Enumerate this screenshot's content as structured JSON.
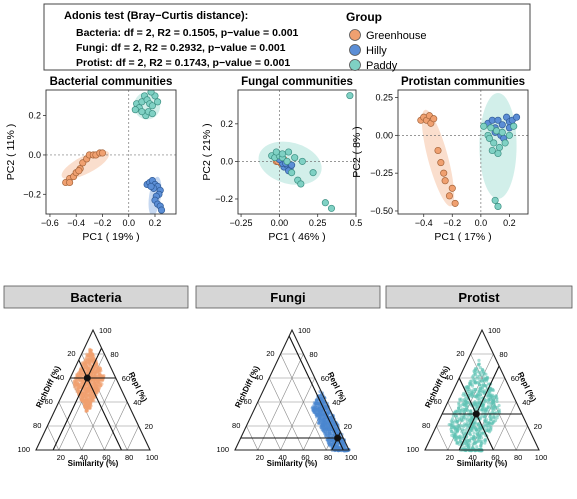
{
  "legend": {
    "adonis_title": "Adonis test (Bray−Curtis distance):",
    "adonis_lines": [
      "Bacteria: df = 2, R2 = 0.1505, p−value = 0.001",
      "Fungi: df = 2, R2 = 0.2932, p−value = 0.001",
      "Protist: df = 2, R2 = 0.1743, p−value = 0.001"
    ],
    "group_title": "Group",
    "groups": [
      {
        "name": "Greenhouse",
        "color": "#f0a070"
      },
      {
        "name": "Hilly",
        "color": "#5b8ed6"
      },
      {
        "name": "Paddy",
        "color": "#7fd1c4"
      }
    ]
  },
  "chart_data": [
    {
      "type": "scatter",
      "title": "Bacterial communities",
      "xlabel": "PC1 ( 19% )",
      "ylabel": "PC2 ( 11% )",
      "xlim": [
        -0.63,
        0.36
      ],
      "ylim": [
        -0.3,
        0.33
      ],
      "xticks": [
        -0.6,
        -0.4,
        -0.2,
        0.0,
        0.2
      ],
      "xtick_labels": [
        "−0.6",
        "−0.4",
        "−0.2",
        "0.0",
        "0.2"
      ],
      "yticks": [
        -0.2,
        0.0,
        0.2
      ],
      "ytick_labels": [
        "−0.2",
        "0.0",
        "0.2"
      ],
      "series": [
        {
          "name": "Greenhouse",
          "points": [
            [
              -0.48,
              -0.14
            ],
            [
              -0.45,
              -0.12
            ],
            [
              -0.42,
              -0.11
            ],
            [
              -0.4,
              -0.09
            ],
            [
              -0.37,
              -0.07
            ],
            [
              -0.35,
              -0.04
            ],
            [
              -0.32,
              -0.02
            ],
            [
              -0.3,
              0.0
            ],
            [
              -0.27,
              0.0
            ],
            [
              -0.25,
              0.0
            ],
            [
              -0.22,
              0.01
            ],
            [
              -0.2,
              0.01
            ],
            [
              -0.45,
              -0.14
            ],
            [
              -0.38,
              -0.08
            ]
          ],
          "ellipse": {
            "cx": -0.33,
            "cy": -0.05,
            "rx": 0.2,
            "ry": 0.045,
            "angle_deg": 27
          }
        },
        {
          "name": "Hilly",
          "points": [
            [
              0.14,
              -0.15
            ],
            [
              0.16,
              -0.14
            ],
            [
              0.18,
              -0.13
            ],
            [
              0.2,
              -0.15
            ],
            [
              0.22,
              -0.16
            ],
            [
              0.24,
              -0.18
            ],
            [
              0.23,
              -0.2
            ],
            [
              0.21,
              -0.21
            ],
            [
              0.2,
              -0.23
            ],
            [
              0.22,
              -0.25
            ],
            [
              0.24,
              -0.26
            ],
            [
              0.25,
              -0.28
            ],
            [
              0.19,
              -0.17
            ],
            [
              0.17,
              -0.16
            ]
          ],
          "ellipse": {
            "cx": 0.2,
            "cy": -0.21,
            "rx": 0.045,
            "ry": 0.1,
            "angle_deg": -8
          }
        },
        {
          "name": "Paddy",
          "points": [
            [
              0.06,
              0.26
            ],
            [
              0.08,
              0.24
            ],
            [
              0.1,
              0.27
            ],
            [
              0.12,
              0.3
            ],
            [
              0.14,
              0.28
            ],
            [
              0.16,
              0.26
            ],
            [
              0.18,
              0.25
            ],
            [
              0.2,
              0.3
            ],
            [
              0.13,
              0.2
            ],
            [
              0.15,
              0.22
            ],
            [
              0.1,
              0.22
            ],
            [
              0.18,
              0.21
            ],
            [
              0.22,
              0.27
            ],
            [
              0.05,
              0.23
            ],
            [
              0.17,
              0.32
            ]
          ],
          "ellipse": {
            "cx": 0.14,
            "cy": 0.25,
            "rx": 0.1,
            "ry": 0.07,
            "angle_deg": 0
          }
        }
      ]
    },
    {
      "type": "scatter",
      "title": "Fungal communities",
      "xlabel": "PC1 ( 46% )",
      "ylabel": "PC2 ( 21% )",
      "xlim": [
        -0.27,
        0.5
      ],
      "ylim": [
        -0.28,
        0.38
      ],
      "xticks": [
        -0.25,
        0.0,
        0.25,
        0.5
      ],
      "xtick_labels": [
        "−0.25",
        "0.00",
        "0.25",
        "0.5"
      ],
      "yticks": [
        -0.2,
        0.0,
        0.2
      ],
      "ytick_labels": [
        "−0.2",
        "0.0",
        "0.2"
      ],
      "series": [
        {
          "name": "Greenhouse",
          "points": [
            [
              -0.02,
              0.0
            ],
            [
              0.0,
              0.01
            ],
            [
              0.02,
              0.0
            ],
            [
              0.01,
              -0.01
            ],
            [
              -0.01,
              0.0
            ],
            [
              0.03,
              0.01
            ]
          ],
          "ellipse": null
        },
        {
          "name": "Hilly",
          "points": [
            [
              0.03,
              -0.03
            ],
            [
              0.05,
              -0.02
            ],
            [
              0.07,
              -0.04
            ],
            [
              0.02,
              -0.01
            ],
            [
              0.06,
              -0.05
            ],
            [
              0.04,
              -0.01
            ],
            [
              0.08,
              -0.02
            ],
            [
              0.0,
              0.01
            ]
          ],
          "ellipse": null
        },
        {
          "name": "Paddy",
          "points": [
            [
              -0.05,
              0.03
            ],
            [
              -0.03,
              0.02
            ],
            [
              0.0,
              0.03
            ],
            [
              0.02,
              0.02
            ],
            [
              0.05,
              0.0
            ],
            [
              0.1,
              0.02
            ],
            [
              0.12,
              -0.1
            ],
            [
              0.15,
              0.0
            ],
            [
              0.22,
              -0.06
            ],
            [
              0.3,
              -0.22
            ],
            [
              0.34,
              -0.25
            ],
            [
              0.46,
              0.35
            ],
            [
              0.06,
              0.05
            ],
            [
              0.08,
              -0.06
            ],
            [
              0.02,
              0.04
            ],
            [
              -0.02,
              0.05
            ],
            [
              0.14,
              -0.12
            ]
          ],
          "ellipse": {
            "cx": 0.07,
            "cy": -0.01,
            "rx": 0.21,
            "ry": 0.11,
            "angle_deg": -15
          }
        }
      ]
    },
    {
      "type": "scatter",
      "title": "Protistan communities",
      "xlabel": "PC1 ( 17% )",
      "ylabel": "PC2 ( 8% )",
      "xlim": [
        -0.58,
        0.33
      ],
      "ylim": [
        -0.52,
        0.3
      ],
      "xticks": [
        -0.4,
        -0.2,
        0.0,
        0.2
      ],
      "xtick_labels": [
        "−0.4",
        "−0.2",
        "0.0",
        "0.2"
      ],
      "yticks": [
        -0.5,
        -0.25,
        0.0,
        0.25
      ],
      "ytick_labels": [
        "−0.50",
        "−0.25",
        "0.00",
        "0.25"
      ],
      "series": [
        {
          "name": "Greenhouse",
          "points": [
            [
              -0.42,
              0.1
            ],
            [
              -0.4,
              0.12
            ],
            [
              -0.38,
              0.1
            ],
            [
              -0.36,
              0.13
            ],
            [
              -0.35,
              0.08
            ],
            [
              -0.33,
              0.11
            ],
            [
              -0.3,
              -0.1
            ],
            [
              -0.28,
              -0.18
            ],
            [
              -0.25,
              -0.3
            ],
            [
              -0.22,
              -0.4
            ],
            [
              -0.2,
              -0.35
            ],
            [
              -0.18,
              -0.45
            ],
            [
              -0.26,
              -0.25
            ]
          ],
          "ellipse": {
            "cx": -0.3,
            "cy": -0.15,
            "rx": 0.07,
            "ry": 0.33,
            "angle_deg": 15
          }
        },
        {
          "name": "Hilly",
          "points": [
            [
              0.05,
              0.08
            ],
            [
              0.08,
              0.1
            ],
            [
              0.1,
              0.05
            ],
            [
              0.12,
              0.1
            ],
            [
              0.15,
              0.07
            ],
            [
              0.18,
              0.12
            ],
            [
              0.2,
              0.09
            ],
            [
              0.22,
              0.1
            ],
            [
              0.25,
              0.12
            ],
            [
              0.1,
              0.02
            ],
            [
              0.14,
              0.0
            ],
            [
              0.16,
              -0.02
            ],
            [
              0.2,
              0.05
            ]
          ],
          "ellipse": null
        },
        {
          "name": "Paddy",
          "points": [
            [
              0.02,
              0.06
            ],
            [
              0.05,
              0.0
            ],
            [
              0.07,
              0.05
            ],
            [
              0.09,
              -0.05
            ],
            [
              0.11,
              0.03
            ],
            [
              0.13,
              -0.08
            ],
            [
              0.15,
              0.02
            ],
            [
              0.12,
              -0.12
            ],
            [
              0.17,
              -0.05
            ],
            [
              0.1,
              -0.43
            ],
            [
              0.12,
              -0.47
            ],
            [
              0.08,
              -0.1
            ],
            [
              0.2,
              0.0
            ],
            [
              0.23,
              0.06
            ],
            [
              0.06,
              -0.02
            ]
          ],
          "ellipse": {
            "cx": 0.12,
            "cy": -0.07,
            "rx": 0.13,
            "ry": 0.35,
            "angle_deg": 0
          }
        }
      ]
    },
    {
      "type": "ternary",
      "title": "Bacteria",
      "axes": {
        "left": "RichDiff (%)",
        "right": "Repl (%)",
        "bottom": "Similarity (%)"
      },
      "tick_values": [
        20,
        40,
        60,
        80,
        100
      ],
      "cloud_color": "#f0a070",
      "cloud": {
        "sim": [
          5,
          30
        ],
        "rich": [
          10,
          40
        ],
        "count": 700
      },
      "centroid": {
        "similarity": 15,
        "richdiff": 25,
        "repl": 60
      }
    },
    {
      "type": "ternary",
      "title": "Fungi",
      "axes": {
        "left": "RichDiff (%)",
        "right": "Repl (%)",
        "bottom": "Similarity (%)"
      },
      "tick_values": [
        20,
        40,
        60,
        80,
        100
      ],
      "cloud_color": "#4a86d0",
      "cloud": {
        "sim": [
          50,
          100
        ],
        "rich": [
          0,
          15
        ],
        "count": 700
      },
      "centroid": {
        "similarity": 85,
        "richdiff": 5,
        "repl": 10
      }
    },
    {
      "type": "ternary",
      "title": "Protist",
      "axes": {
        "left": "RichDiff (%)",
        "right": "Repl (%)",
        "bottom": "Similarity (%)"
      },
      "tick_values": [
        20,
        40,
        60,
        80,
        100
      ],
      "cloud_color": "#5fc2b4",
      "cloud": {
        "sim": [
          10,
          50
        ],
        "rich": [
          15,
          70
        ],
        "count": 700
      },
      "centroid": {
        "similarity": 30,
        "richdiff": 40,
        "repl": 30
      }
    }
  ]
}
